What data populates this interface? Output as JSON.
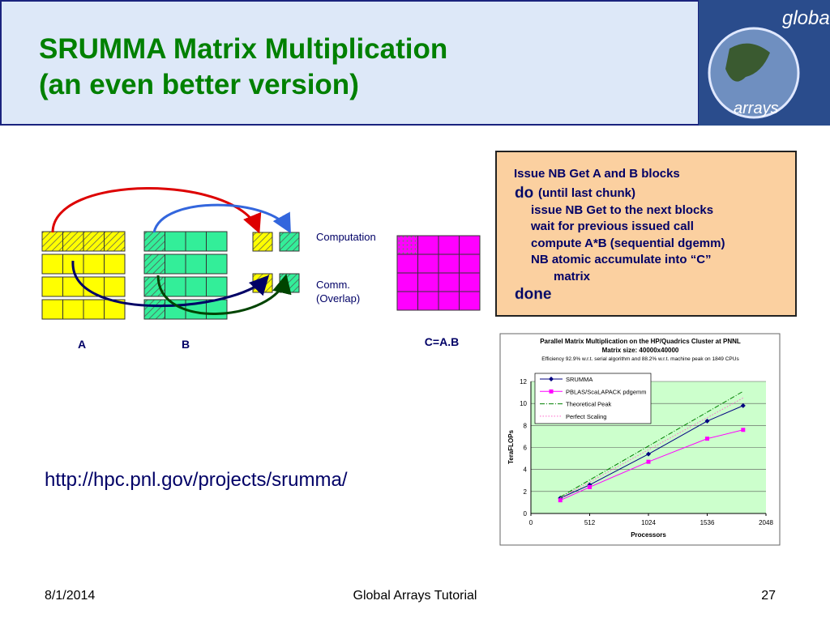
{
  "header": {
    "title_lines": [
      "SRUMMA Matrix Multiplication",
      "(an even better version)"
    ],
    "logo_text": [
      "global",
      "arrays"
    ]
  },
  "diagram": {
    "label_a": "A",
    "label_b": "B",
    "label_c": "C=A.B",
    "computation": "Computation",
    "comm_lines": [
      "Comm.",
      "(Overlap)"
    ]
  },
  "code_box": {
    "first": "Issue NB Get A and B blocks",
    "do": "do",
    "do_rest": "(until last chunk)",
    "body": [
      "issue NB Get to the next blocks",
      "wait for previous issued call",
      "compute A*B (sequential dgemm)",
      "NB atomic accumulate into “C”",
      "matrix"
    ],
    "done": "done"
  },
  "url": "http://hpc.pnl.gov/projects/srumma/",
  "footer": {
    "date": "8/1/2014",
    "center": "Global Arrays Tutorial",
    "page": "27"
  },
  "chart_data": {
    "type": "line",
    "title_lines": [
      "Parallel Matrix Multiplication on the HP/Quadrics Cluster at PNNL",
      "Matrix size: 40000x40000"
    ],
    "subtitle": "Efficiency 92.9% w.r.t. serial algorithm and 88.2% w.r.t. machine peak on 1849 CPUs",
    "xlabel": "Processors",
    "ylabel": "TeraFLOPs",
    "xlim": [
      0,
      2048
    ],
    "xticks": [
      0,
      512,
      1024,
      1536,
      2048
    ],
    "ylim": [
      0,
      12
    ],
    "yticks": [
      0,
      2,
      4,
      6,
      8,
      10,
      12
    ],
    "grid": true,
    "legend": "top-left",
    "series": [
      {
        "name": "SRUMMA",
        "color": "#000080",
        "marker": "diamond",
        "style": "solid",
        "x": [
          256,
          512,
          1024,
          1536,
          1849
        ],
        "values": [
          1.4,
          2.6,
          5.4,
          8.4,
          9.8
        ]
      },
      {
        "name": "PBLAS/ScaLAPACK pdgemm",
        "color": "#ff00ff",
        "marker": "square",
        "style": "solid",
        "x": [
          256,
          512,
          1024,
          1536,
          1849
        ],
        "values": [
          1.2,
          2.4,
          4.7,
          6.8,
          7.6
        ]
      },
      {
        "name": "Theoretical Peak",
        "color": "#008000",
        "marker": "none",
        "style": "dashdot",
        "x": [
          256,
          1849
        ],
        "values": [
          1.5,
          11.1
        ]
      },
      {
        "name": "Perfect Scaling",
        "color": "#ff66cc",
        "marker": "none",
        "style": "dotted",
        "x": [
          256,
          1849
        ],
        "values": [
          1.4,
          10.5
        ]
      }
    ]
  }
}
